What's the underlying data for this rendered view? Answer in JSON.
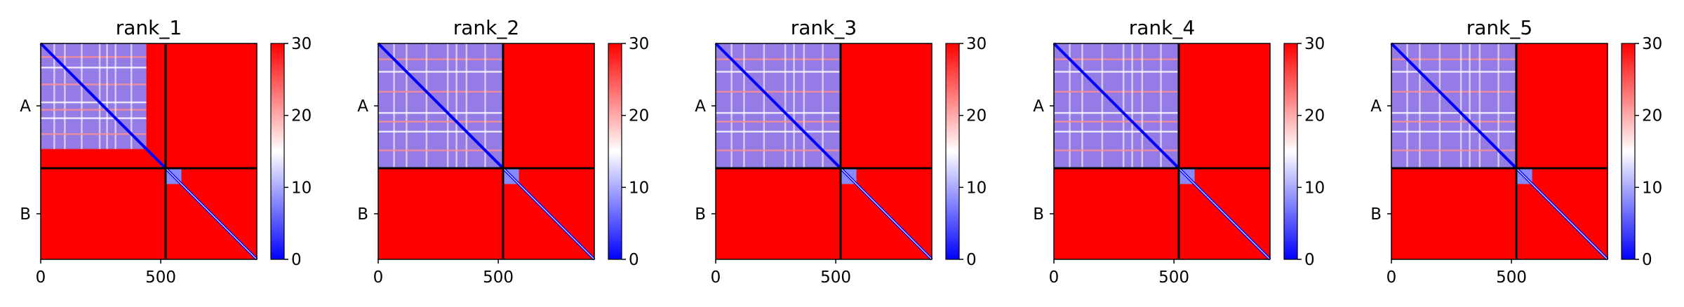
{
  "chart_data": [
    {
      "type": "heatmap",
      "title": "rank_1",
      "chains": [
        "A",
        "B"
      ],
      "chain_boundary": 520,
      "length": 900,
      "xticks": [
        0,
        500
      ],
      "colorbar": {
        "ticks": [
          0,
          10,
          20,
          30
        ],
        "range": [
          0,
          30
        ],
        "colormap": "bwr"
      },
      "colors": {
        "low": "#0000ff",
        "mid": "#ffffff",
        "high": "#ff0000"
      },
      "pattern": {
        "diagonal": 0,
        "intra_A": 8,
        "intra_B": 30,
        "inter": 30,
        "A_blue_extent": 440
      }
    },
    {
      "type": "heatmap",
      "title": "rank_2",
      "chains": [
        "A",
        "B"
      ],
      "chain_boundary": 520,
      "length": 900,
      "xticks": [
        0,
        500
      ],
      "colorbar": {
        "ticks": [
          0,
          10,
          20,
          30
        ],
        "range": [
          0,
          30
        ],
        "colormap": "bwr"
      },
      "colors": {
        "low": "#0000ff",
        "mid": "#ffffff",
        "high": "#ff0000"
      },
      "pattern": {
        "diagonal": 0,
        "intra_A": 8,
        "intra_B": 30,
        "inter": 30,
        "A_blue_extent": 520
      }
    },
    {
      "type": "heatmap",
      "title": "rank_3",
      "chains": [
        "A",
        "B"
      ],
      "chain_boundary": 520,
      "length": 900,
      "xticks": [
        0,
        500
      ],
      "colorbar": {
        "ticks": [
          0,
          10,
          20,
          30
        ],
        "range": [
          0,
          30
        ],
        "colormap": "bwr"
      },
      "colors": {
        "low": "#0000ff",
        "mid": "#ffffff",
        "high": "#ff0000"
      },
      "pattern": {
        "diagonal": 0,
        "intra_A": 8,
        "intra_B": 30,
        "inter": 30,
        "A_blue_extent": 520
      }
    },
    {
      "type": "heatmap",
      "title": "rank_4",
      "chains": [
        "A",
        "B"
      ],
      "chain_boundary": 520,
      "length": 900,
      "xticks": [
        0,
        500
      ],
      "colorbar": {
        "ticks": [
          0,
          10,
          20,
          30
        ],
        "range": [
          0,
          30
        ],
        "colormap": "bwr"
      },
      "colors": {
        "low": "#0000ff",
        "mid": "#ffffff",
        "high": "#ff0000"
      },
      "pattern": {
        "diagonal": 0,
        "intra_A": 8,
        "intra_B": 30,
        "inter": 30,
        "A_blue_extent": 520
      }
    },
    {
      "type": "heatmap",
      "title": "rank_5",
      "chains": [
        "A",
        "B"
      ],
      "chain_boundary": 520,
      "length": 900,
      "xticks": [
        0,
        500
      ],
      "colorbar": {
        "ticks": [
          0,
          10,
          20,
          30
        ],
        "range": [
          0,
          30
        ],
        "colormap": "bwr"
      },
      "colors": {
        "low": "#0000ff",
        "mid": "#ffffff",
        "high": "#ff0000"
      },
      "pattern": {
        "diagonal": 0,
        "intra_A": 8,
        "intra_B": 30,
        "inter": 30,
        "A_blue_extent": 520
      }
    }
  ]
}
